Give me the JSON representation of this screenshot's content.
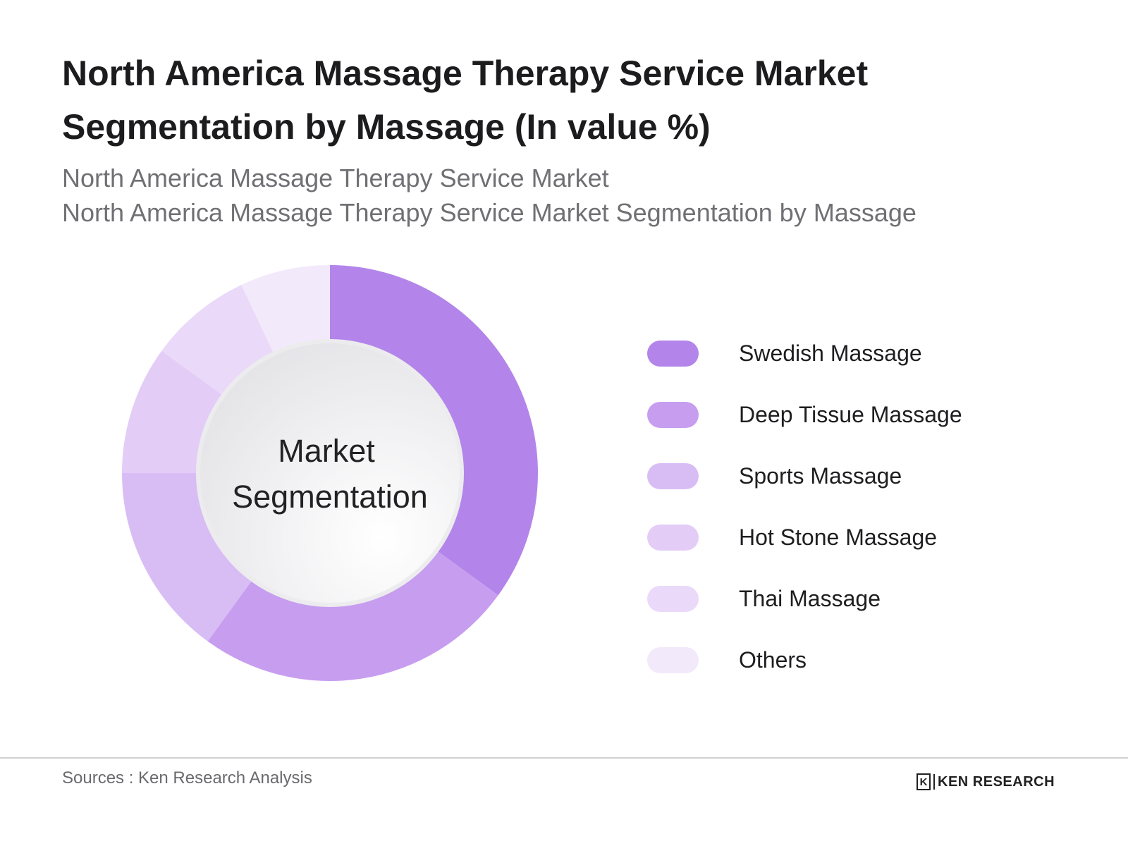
{
  "title": "North America Massage Therapy Service Market Segmentation by Massage (In value %)",
  "subtitle_lines": [
    "North America Massage Therapy Service Market",
    "North America Massage Therapy Service Market Segmentation by Massage"
  ],
  "center_label_lines": [
    "Market",
    "Segmentation"
  ],
  "source": "Sources : Ken Research Analysis",
  "brand": "KEN RESEARCH",
  "brand_mark": "K",
  "chart_data": {
    "type": "pie",
    "donut": true,
    "title": "North America Massage Therapy Service Market Segmentation by Massage (In value %)",
    "categories": [
      "Swedish Massage",
      "Deep Tissue Massage",
      "Sports Massage",
      "Hot Stone Massage",
      "Thai Massage",
      "Others"
    ],
    "values": [
      35,
      25,
      15,
      10,
      8,
      7
    ],
    "colors": [
      "#b385ea",
      "#c79df0",
      "#d8bdf5",
      "#e3cdf7",
      "#ead9f9",
      "#f2e9fb"
    ],
    "legend": "right"
  }
}
